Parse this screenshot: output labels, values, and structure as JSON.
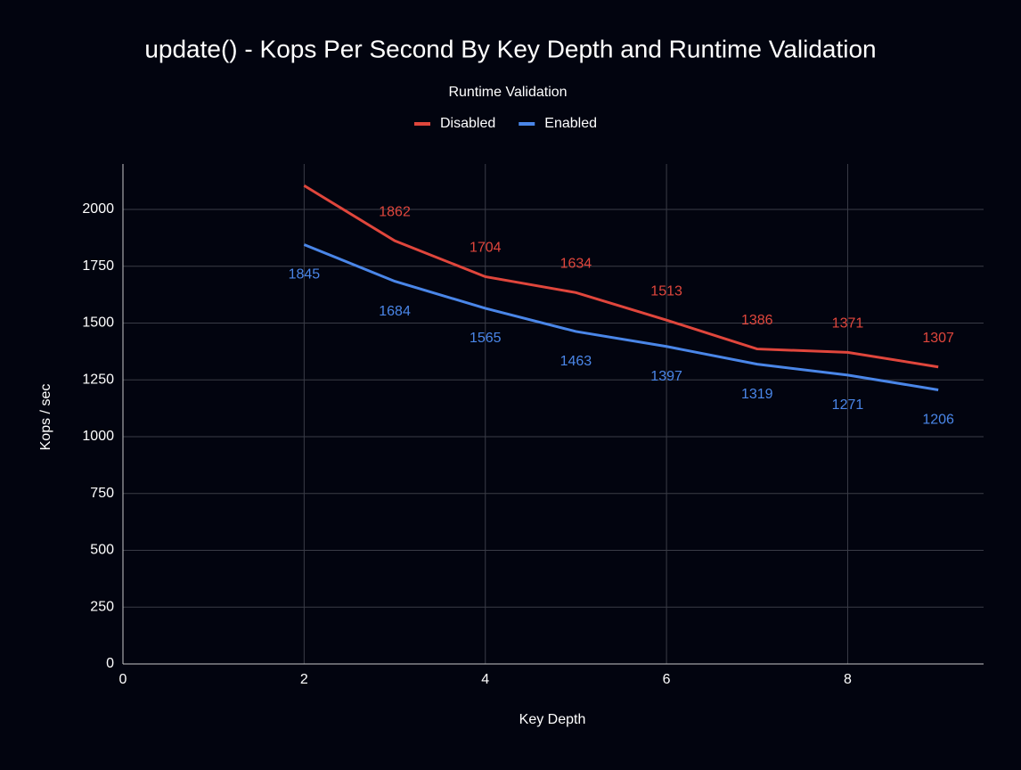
{
  "chart_data": {
    "type": "line",
    "title": "update() - Kops Per Second By Key Depth and Runtime Validation",
    "legend_title": "Runtime Validation",
    "x_label": "Key Depth",
    "y_label": "Kops / sec",
    "x": [
      2,
      3,
      4,
      5,
      6,
      7,
      8,
      9
    ],
    "series": [
      {
        "name": "Disabled",
        "color": "#e0463c",
        "values": [
          2105,
          1862,
          1704,
          1634,
          1513,
          1386,
          1371,
          1307
        ],
        "value_labels": [
          null,
          "1862",
          "1704",
          "1634",
          "1513",
          "1386",
          "1371",
          "1307"
        ],
        "label_position": "above"
      },
      {
        "name": "Enabled",
        "color": "#4a86e8",
        "values": [
          1845,
          1684,
          1565,
          1463,
          1397,
          1319,
          1271,
          1206
        ],
        "value_labels": [
          "1845",
          "1684",
          "1565",
          "1463",
          "1397",
          "1319",
          "1271",
          "1206"
        ],
        "label_position": "below"
      }
    ],
    "xlim": [
      0,
      9.5
    ],
    "xticks": [
      0,
      2,
      4,
      6,
      8
    ],
    "ylim": [
      0,
      2200
    ],
    "yticks": [
      0,
      250,
      500,
      750,
      1000,
      1250,
      1500,
      1750,
      2000
    ],
    "grid": true,
    "legend": "top"
  }
}
